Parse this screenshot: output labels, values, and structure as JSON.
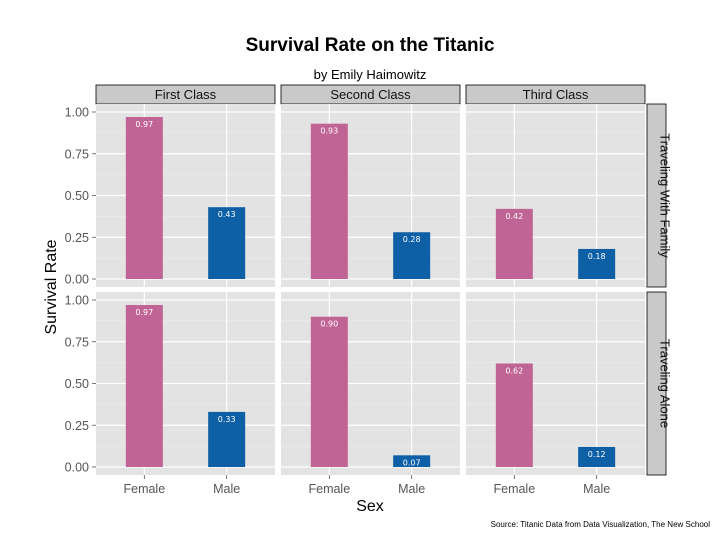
{
  "chart_data": {
    "type": "bar",
    "title": "Survival Rate on the Titanic",
    "subtitle": "by Emily Haimowitz",
    "xlabel": "Sex",
    "ylabel": "Survival Rate",
    "source": "Source: Titanic Data from Data Visualization, The New School",
    "categories": [
      "Female",
      "Male"
    ],
    "column_facets": [
      "First Class",
      "Second Class",
      "Third Class"
    ],
    "row_facets": [
      "Traveling With Family",
      "Traveling Alone"
    ],
    "ylim": [
      0,
      1.0
    ],
    "yticks": [
      "0.00",
      "0.25",
      "0.50",
      "0.75",
      "1.00"
    ],
    "grid": true,
    "colors": {
      "Female": "#c06495",
      "Male": "#0d5fa6",
      "panel_bg": "#e3e3e3",
      "strip_bg": "#c9c9c9"
    },
    "panels": [
      {
        "row": "Traveling With Family",
        "column": "First Class",
        "values": [
          0.97,
          0.43
        ],
        "labels": [
          "0.97",
          "0.43"
        ]
      },
      {
        "row": "Traveling With Family",
        "column": "Second Class",
        "values": [
          0.93,
          0.28
        ],
        "labels": [
          "0.93",
          "0.28"
        ]
      },
      {
        "row": "Traveling With Family",
        "column": "Third Class",
        "values": [
          0.42,
          0.18
        ],
        "labels": [
          "0.42",
          "0.18"
        ]
      },
      {
        "row": "Traveling Alone",
        "column": "First Class",
        "values": [
          0.97,
          0.33
        ],
        "labels": [
          "0.97",
          "0.33"
        ]
      },
      {
        "row": "Traveling Alone",
        "column": "Second Class",
        "values": [
          0.9,
          0.07
        ],
        "labels": [
          "0.90",
          "0.07"
        ]
      },
      {
        "row": "Traveling Alone",
        "column": "Third Class",
        "values": [
          0.62,
          0.12
        ],
        "labels": [
          "0.62",
          "0.12"
        ]
      }
    ]
  }
}
